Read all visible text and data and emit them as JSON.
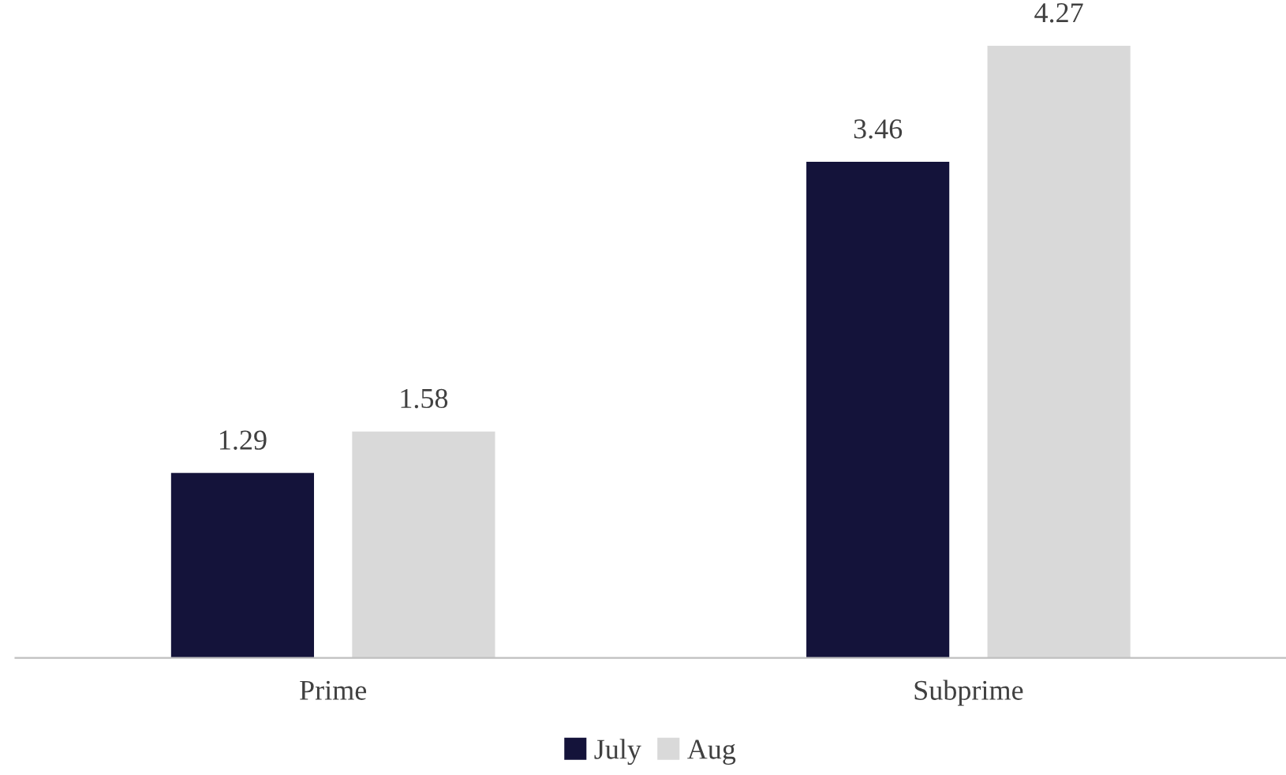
{
  "chart_data": {
    "type": "bar",
    "categories": [
      "Prime",
      "Subprime"
    ],
    "series": [
      {
        "name": "July",
        "color": "#14133a",
        "values": [
          1.29,
          3.46
        ]
      },
      {
        "name": "Aug",
        "color": "#d9d9d9",
        "values": [
          1.58,
          4.27
        ]
      }
    ],
    "data_labels": true,
    "legend": "bottom",
    "grid": false
  }
}
